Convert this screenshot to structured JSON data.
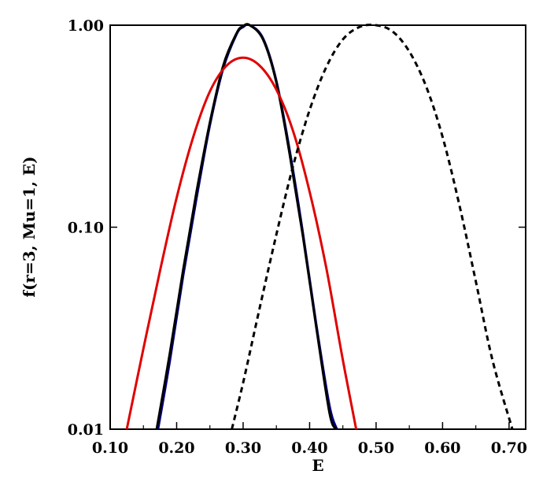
{
  "chart_data": {
    "type": "line",
    "title": "",
    "xlabel": "E",
    "ylabel": "f(r=3, Mu=1, E)",
    "xlim": [
      0.1,
      0.725
    ],
    "ylim": [
      0.01,
      1.0
    ],
    "yscale": "log",
    "grid": false,
    "x_ticks": [
      0.1,
      0.2,
      0.3,
      0.4,
      0.5,
      0.6,
      0.7
    ],
    "x_tick_labels": [
      "0.10",
      "0.20",
      "0.30",
      "0.40",
      "0.50",
      "0.60",
      "0.70"
    ],
    "y_ticks": [
      0.01,
      0.1,
      1.0
    ],
    "y_tick_labels": [
      "0.01",
      "0.10",
      "1.00"
    ],
    "series": [
      {
        "color": "#000080",
        "style": "solid",
        "x": [
          0.172,
          0.19,
          0.21,
          0.23,
          0.25,
          0.27,
          0.29,
          0.3,
          0.31,
          0.33,
          0.35,
          0.37,
          0.39,
          0.41,
          0.43,
          0.441
        ],
        "y": [
          0.01,
          0.022,
          0.058,
          0.14,
          0.32,
          0.61,
          0.9,
          0.98,
          1.0,
          0.86,
          0.53,
          0.24,
          0.093,
          0.033,
          0.013,
          0.01
        ]
      },
      {
        "color": "#000000",
        "style": "solid",
        "x": [
          0.17,
          0.19,
          0.21,
          0.23,
          0.25,
          0.27,
          0.29,
          0.3,
          0.31,
          0.33,
          0.35,
          0.37,
          0.39,
          0.41,
          0.43,
          0.44
        ],
        "y": [
          0.01,
          0.024,
          0.062,
          0.15,
          0.33,
          0.63,
          0.91,
          0.99,
          1.0,
          0.85,
          0.52,
          0.23,
          0.09,
          0.032,
          0.012,
          0.01
        ]
      },
      {
        "color": "#e00000",
        "style": "solid",
        "x": [
          0.125,
          0.15,
          0.175,
          0.2,
          0.225,
          0.25,
          0.275,
          0.3,
          0.325,
          0.35,
          0.375,
          0.4,
          0.425,
          0.45,
          0.47
        ],
        "y": [
          0.01,
          0.025,
          0.061,
          0.14,
          0.28,
          0.47,
          0.63,
          0.69,
          0.63,
          0.48,
          0.3,
          0.15,
          0.063,
          0.022,
          0.01
        ]
      },
      {
        "color": "#000000",
        "style": "dashed",
        "x": [
          0.283,
          0.3,
          0.325,
          0.35,
          0.375,
          0.4,
          0.425,
          0.45,
          0.475,
          0.5,
          0.525,
          0.55,
          0.575,
          0.6,
          0.625,
          0.65,
          0.675,
          0.705
        ],
        "y": [
          0.01,
          0.017,
          0.04,
          0.092,
          0.2,
          0.38,
          0.62,
          0.85,
          0.98,
          1.0,
          0.93,
          0.74,
          0.5,
          0.28,
          0.13,
          0.054,
          0.022,
          0.01
        ]
      }
    ]
  }
}
